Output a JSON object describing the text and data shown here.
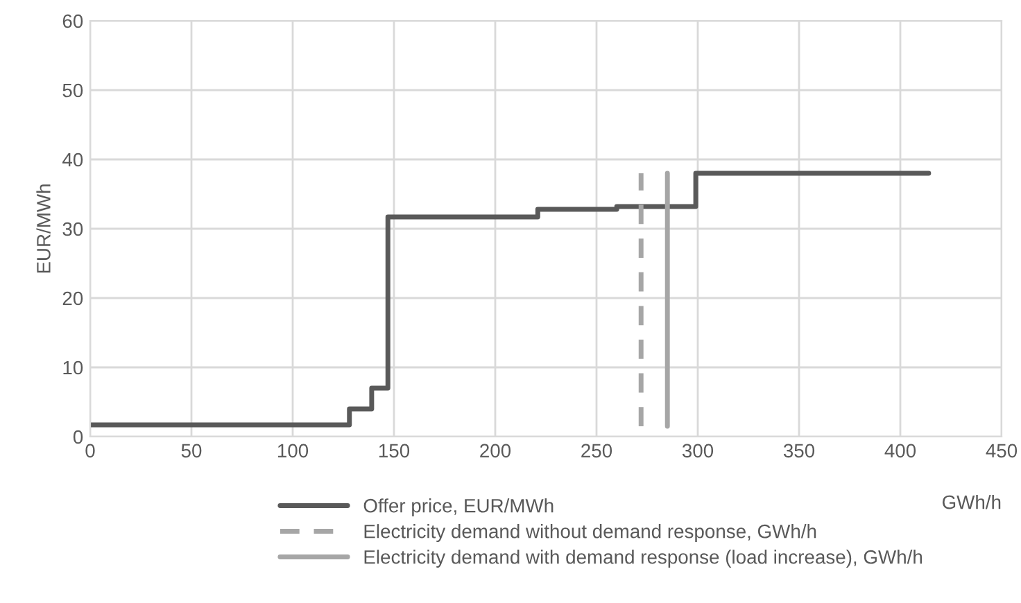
{
  "chart_data": {
    "type": "step",
    "xlabel": "GWh/h",
    "ylabel": "EUR/MWh",
    "xlim": [
      0,
      450
    ],
    "xticks": [
      0,
      50,
      100,
      150,
      200,
      250,
      300,
      350,
      400,
      450
    ],
    "ylim": [
      0,
      60
    ],
    "yticks": [
      0,
      10,
      20,
      30,
      40,
      50,
      60
    ],
    "grid": true,
    "legend": "bottom",
    "series": [
      {
        "name": "Offer price, EUR/MWh",
        "color": "#595959",
        "line_style": "solid",
        "x": [
          0,
          128,
          139,
          147,
          221,
          260,
          299,
          414
        ],
        "values": [
          1.7,
          4,
          7,
          31.7,
          32.8,
          33.2,
          38,
          38
        ]
      },
      {
        "name": "Electricity demand without demand response, GWh/h",
        "type": "line",
        "color": "#a6a6a6",
        "line_style": "dashed",
        "x": [
          272,
          272
        ],
        "values": [
          1.5,
          38
        ]
      },
      {
        "name": "Electricity demand with demand response (load increase), GWh/h",
        "type": "line",
        "color": "#a6a6a6",
        "line_style": "solid",
        "x": [
          285,
          285
        ],
        "values": [
          1.5,
          38
        ]
      }
    ]
  }
}
